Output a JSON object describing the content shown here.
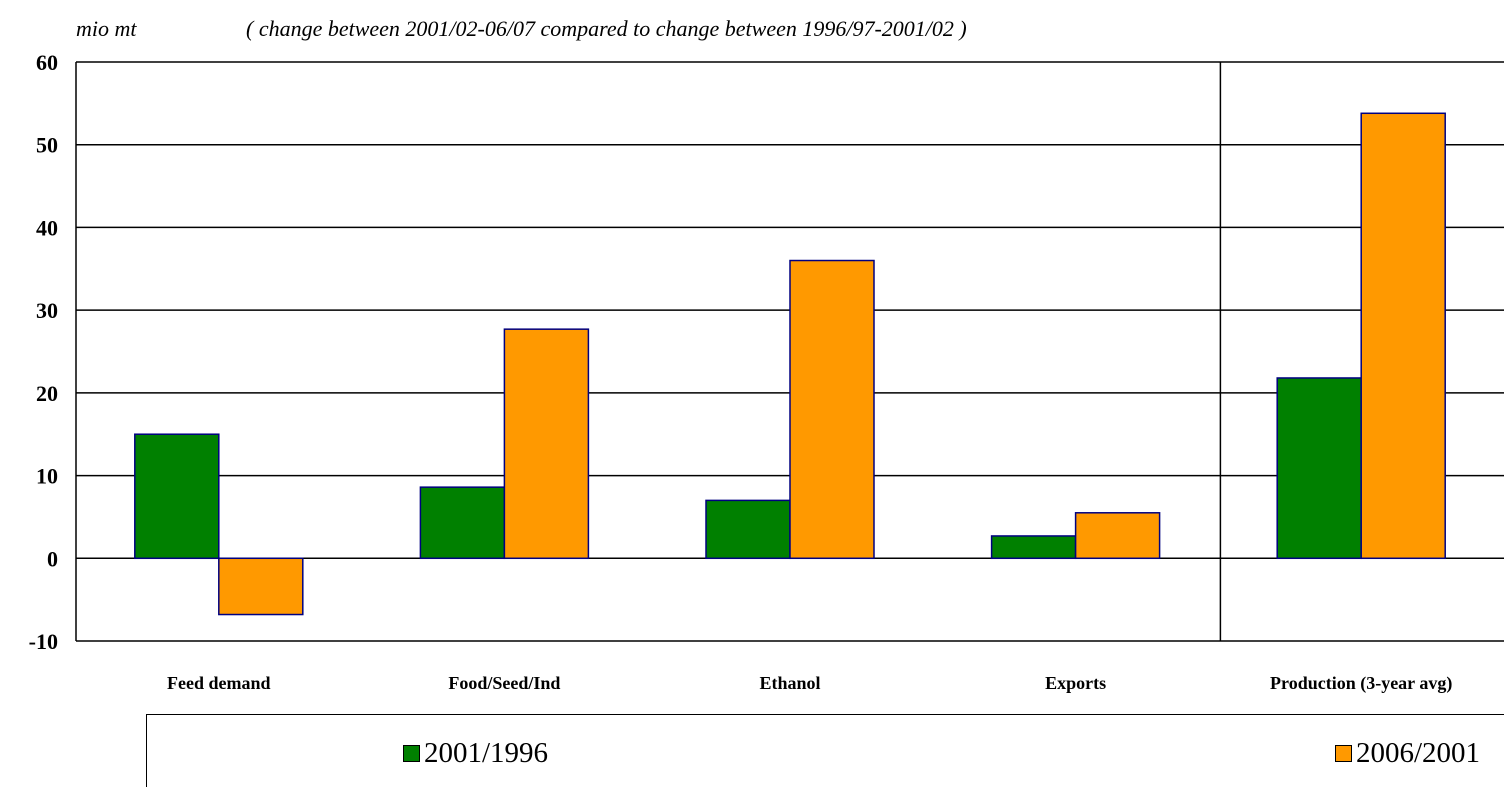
{
  "chart_data": {
    "type": "bar",
    "ylabel": "mio mt",
    "subtitle": "( change between 2001/02-06/07 compared to change between 1996/97-2001/02 )",
    "categories": [
      "Feed demand",
      "Food/Seed/Ind",
      "Ethanol",
      "Exports",
      "Production (3-year avg)"
    ],
    "series": [
      {
        "name": "2001/1996",
        "color": "#008000",
        "values": [
          15,
          8.6,
          7,
          2.7,
          21.8
        ]
      },
      {
        "name": "2006/2001",
        "color": "#FF9900",
        "values": [
          -6.8,
          27.7,
          36,
          5.5,
          53.8
        ]
      }
    ],
    "ylim": [
      -10,
      60
    ],
    "yticks": [
      "60",
      "50",
      "40",
      "30",
      "20",
      "10",
      "0",
      "-10"
    ],
    "grid": true,
    "legend_position": "bottom"
  }
}
